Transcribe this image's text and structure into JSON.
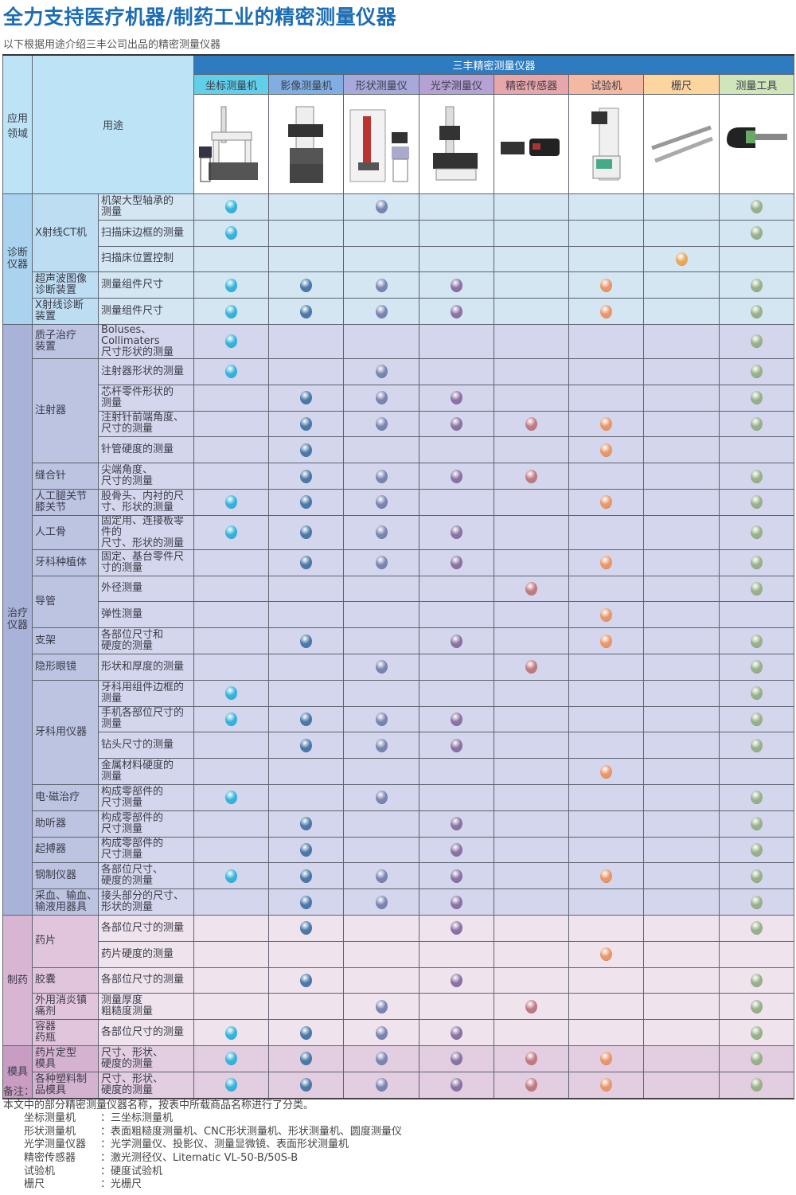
{
  "title": "全力支持医疗机器/制药工业的精密测量仪器",
  "subtitle": "以下根据用途介绍三丰公司出品的精密测量仪器",
  "header": {
    "domain_label": "应用领域",
    "use_label": "用途",
    "band_label": "三丰精密测量仪器",
    "categories": [
      {
        "label": "坐标测量机",
        "color": "#62cfe8",
        "dot": "#35b2dc",
        "icon": "cmm-machine-image"
      },
      {
        "label": "影像测量机",
        "color": "#80aee0",
        "dot": "#4a78a8",
        "icon": "vision-machine-image"
      },
      {
        "label": "形状测量仪",
        "color": "#a6a9d9",
        "dot": "#7a84b2",
        "icon": "form-measuring-image"
      },
      {
        "label": "光学测量仪",
        "color": "#b5a2d5",
        "dot": "#8a72a4",
        "icon": "optical-measuring-image"
      },
      {
        "label": "精密传感器",
        "color": "#e7a6aa",
        "dot": "#c07a82",
        "icon": "laser-sensor-image"
      },
      {
        "label": "试验机",
        "color": "#f5b9a2",
        "dot": "#e8966a",
        "icon": "hardness-tester-image"
      },
      {
        "label": "栅尺",
        "color": "#fdd59e",
        "dot": "#e8a85a",
        "icon": "linear-scale-image"
      },
      {
        "label": "测量工具",
        "color": "#d0e5ba",
        "dot": "#98b08a",
        "icon": "micrometer-image"
      }
    ]
  },
  "sections": [
    {
      "label": "诊断\n仪器",
      "label_bg": "#a9d3ee",
      "bg": "#d3e6f2",
      "groups": [
        {
          "label": "X射线CT机",
          "rows": [
            {
              "use": "机架大型轴承的\n测量",
              "marks": [
                1,
                0,
                1,
                0,
                0,
                0,
                0,
                1
              ]
            },
            {
              "use": "扫描床边框的测量",
              "marks": [
                1,
                0,
                0,
                0,
                0,
                0,
                0,
                1
              ]
            },
            {
              "use": "扫描床位置控制",
              "marks": [
                0,
                0,
                0,
                0,
                0,
                0,
                1,
                0
              ]
            }
          ]
        },
        {
          "label": "超声波图像\n诊断装置",
          "rows": [
            {
              "use": "测量组件尺寸",
              "marks": [
                1,
                1,
                1,
                1,
                0,
                1,
                0,
                1
              ]
            }
          ]
        },
        {
          "label": "X射线诊断\n装置",
          "rows": [
            {
              "use": "测量组件尺寸",
              "marks": [
                1,
                1,
                1,
                1,
                0,
                1,
                0,
                1
              ]
            }
          ]
        }
      ]
    },
    {
      "label": "治疗\n仪器",
      "label_bg": "#a9b3da",
      "bg": "#d3d6ec",
      "groups": [
        {
          "label": "质子治疗\n装置",
          "rows": [
            {
              "use": "Boluses、Collimaters\n尺寸形状的测量",
              "marks": [
                1,
                0,
                0,
                0,
                0,
                0,
                0,
                1
              ]
            }
          ]
        },
        {
          "label": "注射器",
          "rows": [
            {
              "use": "注射器形状的测量",
              "marks": [
                1,
                0,
                1,
                0,
                0,
                0,
                0,
                1
              ]
            },
            {
              "use": "芯杆零件形状的\n测量",
              "marks": [
                0,
                1,
                1,
                1,
                0,
                0,
                0,
                1
              ]
            },
            {
              "use": "注射针前端角度、\n尺寸的测量",
              "marks": [
                0,
                1,
                1,
                1,
                1,
                1,
                0,
                1
              ]
            },
            {
              "use": "针管硬度的测量",
              "marks": [
                0,
                1,
                0,
                0,
                0,
                1,
                0,
                0
              ]
            }
          ]
        },
        {
          "label": "缝合针",
          "rows": [
            {
              "use": "尖端角度、\n尺寸的测量",
              "marks": [
                0,
                1,
                1,
                1,
                1,
                0,
                0,
                1
              ]
            }
          ]
        },
        {
          "label": "人工腿关节\n膝关节",
          "rows": [
            {
              "use": "股骨头、内衬的尺\n寸、形状的测量",
              "marks": [
                1,
                1,
                1,
                0,
                0,
                1,
                0,
                1
              ]
            }
          ]
        },
        {
          "label": "人工骨",
          "rows": [
            {
              "use": "固定用、连接板零件的\n尺寸、形状的测量",
              "marks": [
                1,
                1,
                1,
                1,
                0,
                0,
                0,
                1
              ]
            }
          ]
        },
        {
          "label": "牙科种植体",
          "rows": [
            {
              "use": "固定、基台零件尺\n寸的测量",
              "marks": [
                0,
                1,
                1,
                1,
                0,
                1,
                0,
                1
              ]
            }
          ]
        },
        {
          "label": "导管",
          "rows": [
            {
              "use": "外径测量",
              "marks": [
                0,
                0,
                0,
                0,
                1,
                0,
                0,
                1
              ]
            },
            {
              "use": "弹性测量",
              "marks": [
                0,
                0,
                0,
                0,
                0,
                1,
                0,
                0
              ]
            }
          ]
        },
        {
          "label": "支架",
          "rows": [
            {
              "use": "各部位尺寸和\n硬度的测量",
              "marks": [
                0,
                1,
                0,
                1,
                0,
                1,
                0,
                1
              ]
            }
          ]
        },
        {
          "label": "隐形眼镜",
          "rows": [
            {
              "use": "形状和厚度的测量",
              "marks": [
                0,
                0,
                1,
                0,
                1,
                0,
                0,
                1
              ]
            }
          ]
        },
        {
          "label": "牙科用仪器",
          "rows": [
            {
              "use": "牙科用组件边框的\n测量",
              "marks": [
                1,
                0,
                0,
                0,
                0,
                0,
                0,
                1
              ]
            },
            {
              "use": "手机各部位尺寸的\n测量",
              "marks": [
                1,
                1,
                1,
                1,
                0,
                0,
                0,
                1
              ]
            },
            {
              "use": "钻头尺寸的测量",
              "marks": [
                0,
                1,
                1,
                1,
                0,
                0,
                0,
                1
              ]
            },
            {
              "use": "金属材料硬度的\n测量",
              "marks": [
                0,
                0,
                0,
                0,
                0,
                1,
                0,
                0
              ]
            }
          ]
        },
        {
          "label": "电·磁治疗",
          "rows": [
            {
              "use": "构成零部件的\n尺寸测量",
              "marks": [
                1,
                0,
                1,
                0,
                0,
                0,
                0,
                1
              ]
            }
          ]
        },
        {
          "label": "助听器",
          "rows": [
            {
              "use": "构成零部件的\n尺寸测量",
              "marks": [
                0,
                1,
                0,
                1,
                0,
                0,
                0,
                1
              ]
            }
          ]
        },
        {
          "label": "起搏器",
          "rows": [
            {
              "use": "构成零部件的\n尺寸测量",
              "marks": [
                0,
                1,
                0,
                1,
                0,
                0,
                0,
                1
              ]
            }
          ]
        },
        {
          "label": "钢制仪器",
          "rows": [
            {
              "use": "各部位尺寸、\n硬度的测量",
              "marks": [
                1,
                1,
                1,
                1,
                0,
                1,
                0,
                1
              ]
            }
          ]
        },
        {
          "label": "采血、输血、\n输液用器具",
          "rows": [
            {
              "use": "接头部分的尺寸、\n形状的测量",
              "marks": [
                0,
                1,
                1,
                1,
                0,
                0,
                0,
                1
              ]
            }
          ]
        }
      ]
    },
    {
      "label": "制药",
      "label_bg": "#d8b5d3",
      "bg": "#efe4ee",
      "groups": [
        {
          "label": "药片",
          "rows": [
            {
              "use": "各部位尺寸的测量",
              "marks": [
                0,
                1,
                0,
                1,
                0,
                0,
                0,
                1
              ]
            },
            {
              "use": "药片硬度的测量",
              "marks": [
                0,
                0,
                0,
                0,
                0,
                1,
                0,
                0
              ]
            }
          ]
        },
        {
          "label": "胶囊",
          "rows": [
            {
              "use": "各部位尺寸的测量",
              "marks": [
                0,
                1,
                0,
                1,
                0,
                0,
                0,
                1
              ]
            }
          ]
        },
        {
          "label": "外用消炎镇\n痛剂",
          "rows": [
            {
              "use": "测量厚度\n粗糙度测量",
              "marks": [
                0,
                0,
                1,
                0,
                1,
                0,
                0,
                1
              ]
            }
          ]
        },
        {
          "label": "容器\n药瓶",
          "rows": [
            {
              "use": "各部位尺寸的测量",
              "marks": [
                1,
                1,
                1,
                1,
                0,
                0,
                0,
                1
              ]
            }
          ]
        }
      ]
    },
    {
      "label": "模具",
      "label_bg": "#c99cc3",
      "bg": "#e2cde1",
      "groups": [
        {
          "label": "药片定型\n模具",
          "rows": [
            {
              "use": "尺寸、形状、\n硬度的测量",
              "marks": [
                1,
                1,
                1,
                1,
                1,
                1,
                0,
                1
              ]
            }
          ]
        },
        {
          "label": "各种塑料制\n品模具",
          "rows": [
            {
              "use": "尺寸、形状、\n硬度的测量",
              "marks": [
                1,
                1,
                1,
                1,
                1,
                1,
                0,
                1
              ]
            }
          ]
        }
      ]
    }
  ],
  "notes": {
    "heading": "备注：",
    "intro": "本文中的部分精密测量仪器名称，按表中所载商品名称进行了分类。",
    "items": [
      {
        "label": "坐标测量机",
        "value": "：三坐标测量机"
      },
      {
        "label": "形状测量机",
        "value": "：表面粗糙度测量机、CNC形状测量机、形状测量机、圆度测量仪"
      },
      {
        "label": "光学测量仪器",
        "value": "：光学测量仪、投影仪、测量显微镜、表面形状测量机"
      },
      {
        "label": "精密传感器",
        "value": "：激光测径仪、Litematic VL-50-B/50S-B"
      },
      {
        "label": "试验机",
        "value": "：硬度试验机"
      },
      {
        "label": "栅尺",
        "value": "：光栅尺"
      }
    ]
  }
}
